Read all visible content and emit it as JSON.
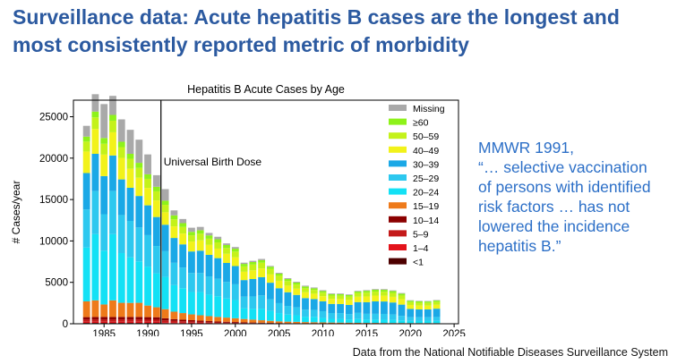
{
  "slide": {
    "title_line1": "Surveillance data: Acute hepatitis B cases are the longest and",
    "title_line2": "most consistently reported metric of morbidity",
    "quote_line1": "MMWR 1991,",
    "quote_line2": "“… selective vaccination",
    "quote_line3": "of persons with identified",
    "quote_line4": "risk factors … has not",
    "quote_line5": "lowered the incidence",
    "quote_line6": "hepatitis B.”",
    "footer": "Data from the National Notifiable Diseases Surveillance System"
  },
  "chart_data": {
    "type": "bar",
    "stacked": true,
    "title": "Hepatitis B Acute Cases by Age",
    "xlabel": "",
    "ylabel": "# Cases/year",
    "xlim": [
      1981.5,
      2025.5
    ],
    "ylim": [
      0,
      27000
    ],
    "xticks": [
      1985,
      1990,
      1995,
      2000,
      2005,
      2010,
      2015,
      2020,
      2025
    ],
    "yticks": [
      0,
      5000,
      10000,
      15000,
      20000,
      25000
    ],
    "grid": false,
    "legend_position": "top-right",
    "annotation": {
      "x": 1991.5,
      "label": "Universal Birth Dose"
    },
    "years": [
      1983,
      1984,
      1985,
      1986,
      1987,
      1988,
      1989,
      1990,
      1991,
      1992,
      1993,
      1994,
      1995,
      1996,
      1997,
      1998,
      1999,
      2000,
      2001,
      2002,
      2003,
      2004,
      2005,
      2006,
      2007,
      2008,
      2009,
      2010,
      2011,
      2012,
      2013,
      2014,
      2015,
      2016,
      2017,
      2018,
      2019,
      2020,
      2021,
      2022,
      2023
    ],
    "series": [
      {
        "name": "<1",
        "color": "#4d0000",
        "values": [
          100,
          100,
          100,
          100,
          100,
          100,
          100,
          100,
          100,
          80,
          70,
          60,
          50,
          45,
          40,
          35,
          30,
          25,
          20,
          20,
          15,
          15,
          10,
          10,
          10,
          10,
          10,
          10,
          10,
          10,
          10,
          10,
          10,
          10,
          10,
          10,
          10,
          10,
          10,
          10,
          10
        ]
      },
      {
        "name": "1–4",
        "color": "#e3131b",
        "values": [
          150,
          150,
          150,
          150,
          150,
          150,
          150,
          150,
          150,
          120,
          100,
          90,
          80,
          70,
          60,
          50,
          45,
          40,
          35,
          30,
          25,
          20,
          20,
          15,
          15,
          15,
          15,
          10,
          10,
          10,
          10,
          10,
          10,
          10,
          10,
          10,
          10,
          10,
          10,
          10,
          10
        ]
      },
      {
        "name": "5–9",
        "color": "#c41a1a",
        "values": [
          250,
          250,
          250,
          250,
          250,
          250,
          250,
          240,
          240,
          200,
          170,
          150,
          130,
          110,
          90,
          80,
          70,
          60,
          50,
          40,
          35,
          30,
          25,
          20,
          20,
          15,
          15,
          15,
          10,
          10,
          10,
          10,
          10,
          10,
          10,
          10,
          10,
          10,
          10,
          10,
          10
        ]
      },
      {
        "name": "10–14",
        "color": "#8b0000",
        "values": [
          300,
          320,
          330,
          320,
          330,
          320,
          330,
          310,
          300,
          260,
          220,
          190,
          170,
          150,
          130,
          110,
          100,
          90,
          70,
          60,
          50,
          40,
          35,
          30,
          25,
          20,
          20,
          15,
          15,
          15,
          15,
          10,
          10,
          10,
          10,
          10,
          10,
          10,
          10,
          10,
          10
        ]
      },
      {
        "name": "15–19",
        "color": "#ee7a1a",
        "values": [
          1900,
          2000,
          1500,
          2000,
          1700,
          1700,
          1700,
          1400,
          1200,
          1100,
          900,
          800,
          700,
          650,
          600,
          550,
          500,
          450,
          400,
          350,
          300,
          250,
          200,
          180,
          160,
          140,
          120,
          110,
          100,
          90,
          80,
          70,
          60,
          60,
          50,
          50,
          50,
          40,
          40,
          40,
          40
        ]
      },
      {
        "name": "20–24",
        "color": "#13e1f5",
        "values": [
          6500,
          8000,
          6500,
          8000,
          6000,
          5500,
          5000,
          4700,
          4100,
          3900,
          3200,
          3000,
          2700,
          2800,
          2600,
          2500,
          2300,
          2200,
          1300,
          1300,
          1400,
          1200,
          1000,
          850,
          800,
          650,
          650,
          550,
          450,
          450,
          400,
          450,
          400,
          400,
          400,
          380,
          320,
          260,
          250,
          250,
          260
        ]
      },
      {
        "name": "25–29",
        "color": "#2dc8ef",
        "values": [
          4600,
          5200,
          4400,
          5200,
          4600,
          4400,
          4100,
          3800,
          3300,
          3100,
          2700,
          2500,
          2300,
          2300,
          2200,
          2100,
          2000,
          1900,
          1400,
          1500,
          1600,
          1400,
          1200,
          1050,
          950,
          850,
          850,
          800,
          700,
          700,
          650,
          750,
          700,
          700,
          700,
          650,
          550,
          450,
          450,
          450,
          480
        ]
      },
      {
        "name": "30–39",
        "color": "#1aa8e6",
        "values": [
          4400,
          4500,
          4600,
          4300,
          4300,
          4000,
          3800,
          3600,
          3500,
          3200,
          3000,
          2800,
          2600,
          2700,
          2600,
          2500,
          2300,
          2200,
          2000,
          2100,
          2200,
          2000,
          1800,
          1650,
          1500,
          1400,
          1300,
          1200,
          1100,
          1100,
          1100,
          1300,
          1400,
          1500,
          1500,
          1450,
          1350,
          1000,
          950,
          950,
          1000
        ]
      },
      {
        "name": "40–49",
        "color": "#f2f21a",
        "values": [
          2600,
          3000,
          2600,
          2800,
          2600,
          2300,
          2200,
          2100,
          2000,
          1500,
          1400,
          1300,
          1200,
          1250,
          1200,
          1150,
          1100,
          1050,
          1000,
          1050,
          1050,
          1000,
          900,
          800,
          750,
          700,
          650,
          620,
          600,
          600,
          600,
          650,
          700,
          700,
          700,
          680,
          650,
          480,
          470,
          460,
          470
        ]
      },
      {
        "name": "50–59",
        "color": "#c4f21a",
        "values": [
          1200,
          1400,
          1300,
          1400,
          1300,
          1200,
          1200,
          1100,
          1100,
          900,
          850,
          800,
          750,
          800,
          750,
          750,
          700,
          700,
          650,
          700,
          700,
          650,
          600,
          550,
          500,
          480,
          450,
          420,
          400,
          400,
          400,
          430,
          460,
          480,
          480,
          470,
          450,
          340,
          330,
          330,
          340
        ]
      },
      {
        "name": "≥60",
        "color": "#8ef21a",
        "values": [
          600,
          700,
          700,
          700,
          650,
          600,
          600,
          550,
          550,
          500,
          480,
          460,
          420,
          420,
          400,
          380,
          360,
          350,
          300,
          300,
          300,
          280,
          260,
          250,
          240,
          220,
          200,
          200,
          190,
          190,
          190,
          200,
          220,
          230,
          230,
          230,
          220,
          170,
          170,
          170,
          170
        ]
      },
      {
        "name": "Missing",
        "color": "#a9a9a9",
        "values": [
          1300,
          2100,
          4100,
          2300,
          2700,
          2900,
          2800,
          2400,
          1400,
          1400,
          600,
          500,
          500,
          400,
          300,
          300,
          200,
          200,
          150,
          150,
          150,
          100,
          100,
          100,
          100,
          100,
          100,
          100,
          80,
          80,
          80,
          80,
          80,
          80,
          80,
          80,
          80,
          60,
          60,
          60,
          60
        ]
      }
    ]
  }
}
